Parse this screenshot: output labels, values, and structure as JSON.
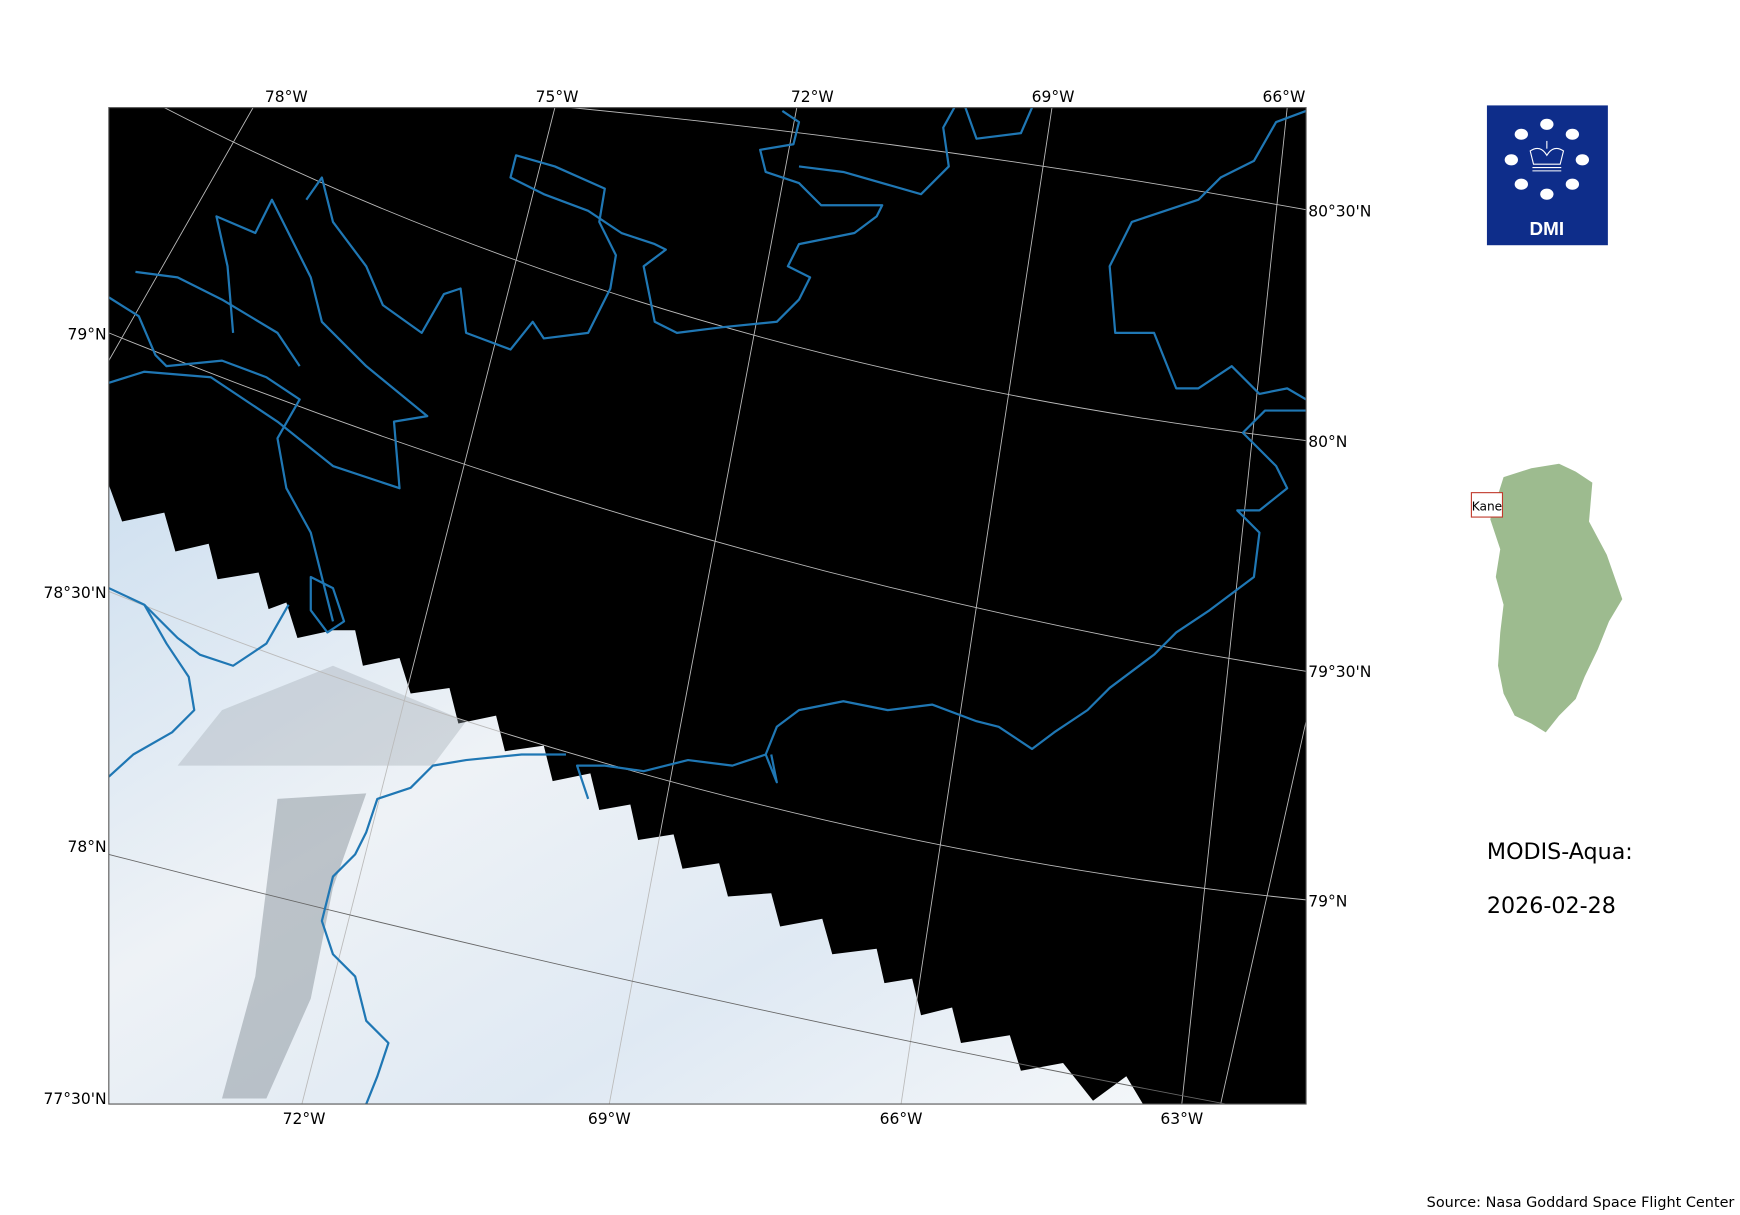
{
  "map": {
    "top_lon_labels": [
      "78°W",
      "75°W",
      "72°W",
      "69°W",
      "66°W"
    ],
    "bottom_lon_labels": [
      "72°W",
      "69°W",
      "66°W",
      "63°W"
    ],
    "left_lat_labels": [
      "79°N",
      "78°30'N",
      "78°N",
      "77°30'N"
    ],
    "right_lat_labels": [
      "80°30'N",
      "80°N",
      "79°30'N",
      "79°N"
    ],
    "colors": {
      "background": "#000000",
      "coastline": "#1f77b4",
      "gridlines": "#bbbbbb",
      "ice": "#e8eef4"
    }
  },
  "logo": {
    "text": "DMI",
    "color": "#0e2d8a"
  },
  "inset": {
    "region_label": "Kane",
    "land_color": "#9dbb8f",
    "box_color": "#c0392b"
  },
  "info": {
    "sensor": "MODIS-Aqua:",
    "date": "2026-02-28"
  },
  "source": "Source: Nasa Goddard Space Flight Center"
}
